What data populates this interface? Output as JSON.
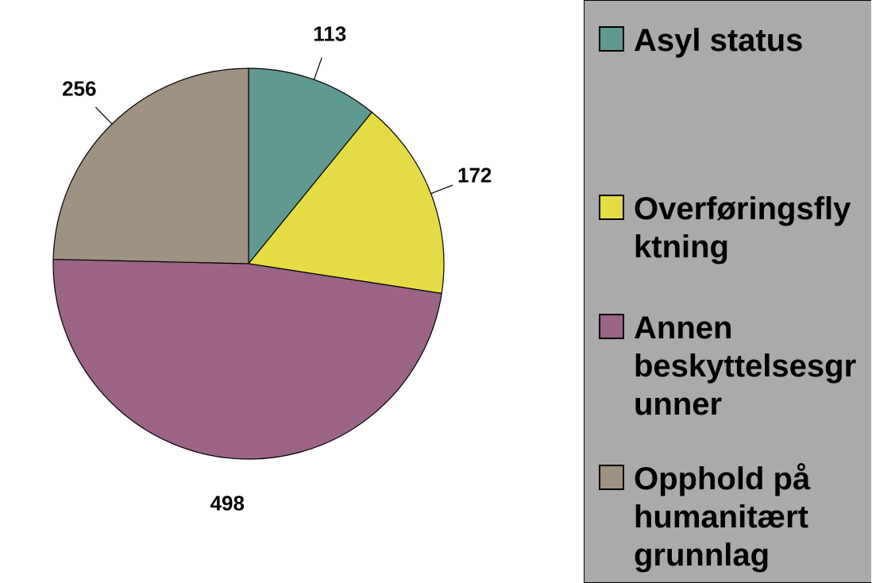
{
  "chart_data": {
    "type": "pie",
    "categories": [
      "Asyl status",
      "Overføringsflyktning",
      "Annen beskyttelsesgrunner",
      "Opphold på humanitært grunnlag"
    ],
    "values": [
      113,
      172,
      498,
      256
    ],
    "colors": [
      "#5f9a90",
      "#e5dc45",
      "#9b6385",
      "#a09282"
    ],
    "legend": "right"
  }
}
